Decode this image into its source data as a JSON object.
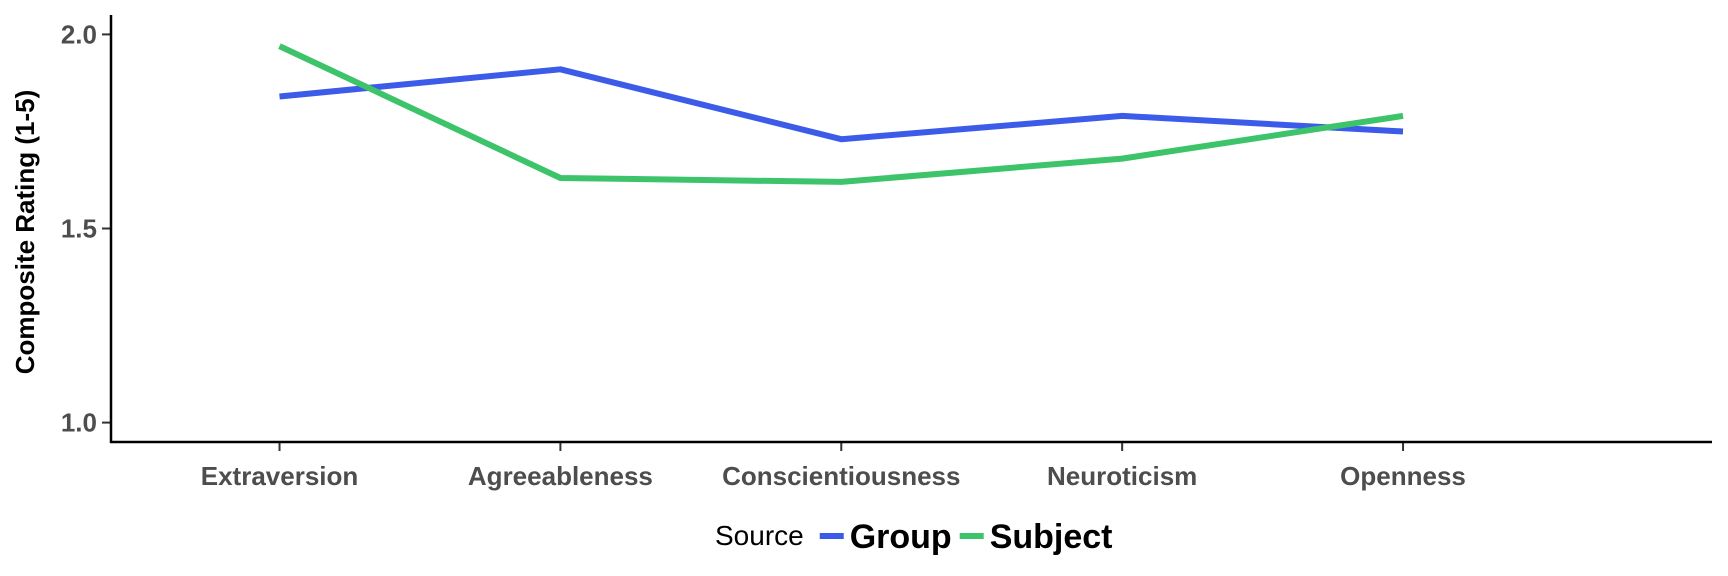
{
  "chart_data": {
    "type": "line",
    "ylabel": "Composite Rating (1-5)",
    "xlabel": "",
    "ylim": [
      0.95,
      2.05
    ],
    "yticks": [
      1.0,
      1.5,
      2.0
    ],
    "ytick_labels": [
      "1.0",
      "1.5",
      "2.0"
    ],
    "categories": [
      "Extraversion",
      "Agreeableness",
      "Conscientiousness",
      "Neuroticism",
      "Openness"
    ],
    "grid": false,
    "legend": {
      "title": "Source",
      "position": "bottom"
    },
    "series": [
      {
        "name": "Group",
        "color": "#3B5BE8",
        "values": [
          1.84,
          1.91,
          1.73,
          1.79,
          1.75
        ]
      },
      {
        "name": "Subject",
        "color": "#3DC46A",
        "values": [
          1.97,
          1.63,
          1.62,
          1.68,
          1.79
        ]
      }
    ]
  }
}
